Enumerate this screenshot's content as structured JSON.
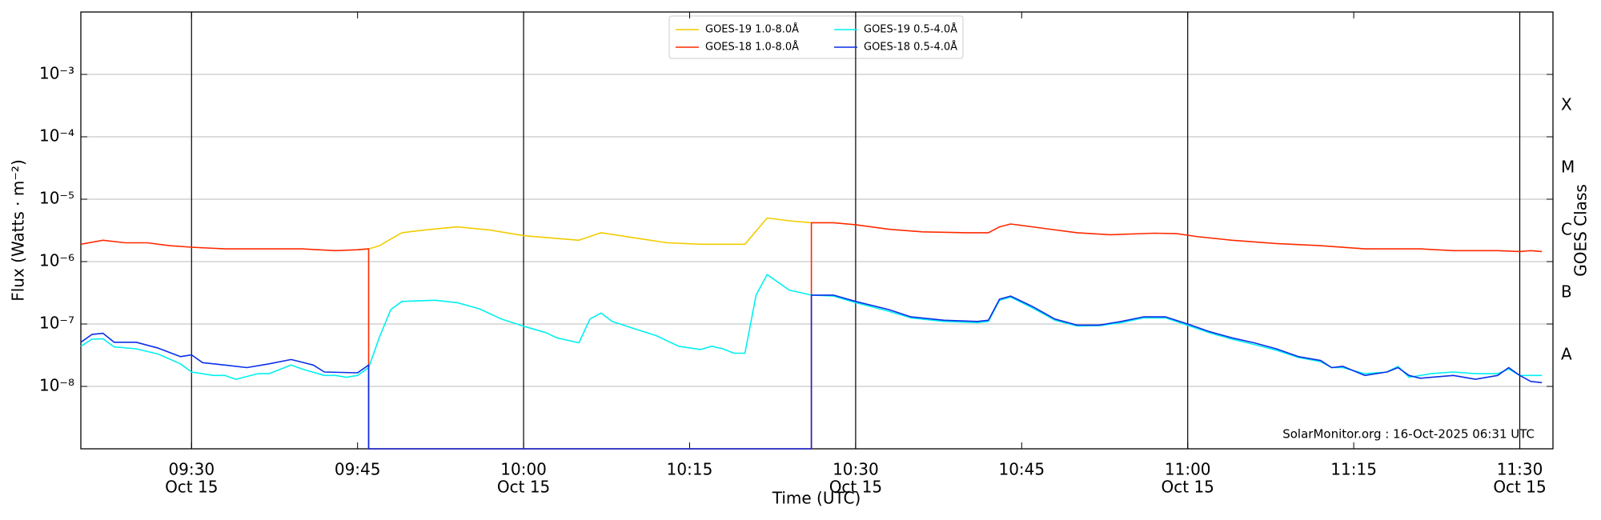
{
  "chart_data": {
    "type": "line",
    "x_label": "Time (UTC)",
    "y_label": "Flux (Watts · m⁻²)",
    "y2_label": "GOES Class",
    "annotation": "SolarMonitor.org : 16-Oct-2025 06:31 UTC",
    "log_y": true,
    "grid": true,
    "legend": "top",
    "xlim": [
      "09:20",
      "11:33"
    ],
    "ylim": [
      1e-09,
      0.01
    ],
    "xticks": [
      {
        "value": "09:30",
        "label": "09:30",
        "date": "Oct 15"
      },
      {
        "value": "09:45",
        "label": "09:45"
      },
      {
        "value": "10:00",
        "label": "10:00",
        "date": "Oct 15"
      },
      {
        "value": "10:15",
        "label": "10:15"
      },
      {
        "value": "10:30",
        "label": "10:30",
        "date": "Oct 15"
      },
      {
        "value": "10:45",
        "label": "10:45"
      },
      {
        "value": "11:00",
        "label": "11:00",
        "date": "Oct 15"
      },
      {
        "value": "11:15",
        "label": "11:15"
      },
      {
        "value": "11:30",
        "label": "11:30",
        "date": "Oct 15"
      }
    ],
    "vlines": [
      "09:30",
      "10:00",
      "10:30",
      "11:00",
      "11:30"
    ],
    "yticks": [
      {
        "value": 1e-08,
        "label": "10⁻⁸"
      },
      {
        "value": 1e-07,
        "label": "10⁻⁷"
      },
      {
        "value": 1e-06,
        "label": "10⁻⁶"
      },
      {
        "value": 1e-05,
        "label": "10⁻⁵"
      },
      {
        "value": 0.0001,
        "label": "10⁻⁴"
      },
      {
        "value": 0.001,
        "label": "10⁻³"
      }
    ],
    "class_ticks": [
      {
        "value": 3.16e-08,
        "label": "A"
      },
      {
        "value": 3.16e-07,
        "label": "B"
      },
      {
        "value": 3.16e-06,
        "label": "C"
      },
      {
        "value": 3.16e-05,
        "label": "M"
      },
      {
        "value": 0.000316,
        "label": "X"
      }
    ],
    "series": [
      {
        "name": "GOES-19 1.0-8.0Å",
        "color": "#f2cc00",
        "x": [
          "09:45",
          "09:46",
          "09:47",
          "09:48",
          "09:49",
          "09:51",
          "09:54",
          "09:57",
          "10:00",
          "10:05",
          "10:07",
          "10:10",
          "10:13",
          "10:16",
          "10:20",
          "10:22",
          "10:24",
          "10:26"
        ],
        "values": [
          1.55e-06,
          1.6e-06,
          1.8e-06,
          2.3e-06,
          2.9e-06,
          3.2e-06,
          3.6e-06,
          3.2e-06,
          2.6e-06,
          2.2e-06,
          2.9e-06,
          2.4e-06,
          2e-06,
          1.9e-06,
          1.9e-06,
          5e-06,
          4.5e-06,
          4.2e-06
        ]
      },
      {
        "name": "GOES-18 1.0-8.0Å",
        "color": "#ff2a00",
        "x": [
          "09:20",
          "09:22",
          "09:24",
          "09:26",
          "09:28",
          "09:30",
          "09:33",
          "09:37",
          "09:40",
          "09:43",
          "09:45",
          "09:46",
          "09:46",
          "10:26",
          "10:26",
          "10:28",
          "10:30",
          "10:33",
          "10:36",
          "10:40",
          "10:42",
          "10:43",
          "10:44",
          "10:47",
          "10:50",
          "10:53",
          "10:57",
          "10:59",
          "11:01",
          "11:04",
          "11:08",
          "11:12",
          "11:16",
          "11:21",
          "11:24",
          "11:28",
          "11:30",
          "11:31",
          "11:32"
        ],
        "values": [
          1.9e-06,
          2.2e-06,
          2e-06,
          2e-06,
          1.8e-06,
          1.7e-06,
          1.6e-06,
          1.6e-06,
          1.6e-06,
          1.5e-06,
          1.55e-06,
          1.6e-06,
          1e-09,
          1e-09,
          4.2e-06,
          4.2e-06,
          3.9e-06,
          3.3e-06,
          3e-06,
          2.9e-06,
          2.9e-06,
          3.6e-06,
          4e-06,
          3.4e-06,
          2.9e-06,
          2.7e-06,
          2.85e-06,
          2.8e-06,
          2.5e-06,
          2.2e-06,
          1.95e-06,
          1.8e-06,
          1.6e-06,
          1.6e-06,
          1.5e-06,
          1.5e-06,
          1.45e-06,
          1.5e-06,
          1.45e-06
        ]
      },
      {
        "name": "GOES-19 0.5-4.0Å",
        "color": "#00f0f0",
        "x": [
          "09:20",
          "09:21",
          "09:22",
          "09:23",
          "09:25",
          "09:27",
          "09:29",
          "09:30",
          "09:32",
          "09:33",
          "09:34",
          "09:36",
          "09:37",
          "09:39",
          "09:40",
          "09:42",
          "09:43",
          "09:44",
          "09:45",
          "09:46",
          "09:47",
          "09:48",
          "09:49",
          "09:52",
          "09:54",
          "09:56",
          "09:58",
          "10:00",
          "10:02",
          "10:03",
          "10:05",
          "10:06",
          "10:07",
          "10:08",
          "10:10",
          "10:12",
          "10:14",
          "10:16",
          "10:17",
          "10:18",
          "10:19",
          "10:20",
          "10:21",
          "10:22",
          "10:24",
          "10:26",
          "10:28",
          "10:30",
          "10:33",
          "10:35",
          "10:38",
          "10:41",
          "10:42",
          "10:43",
          "10:44",
          "10:46",
          "10:48",
          "10:50",
          "10:52",
          "10:54",
          "10:56",
          "10:58",
          "11:00",
          "11:02",
          "11:04",
          "11:06",
          "11:08",
          "11:10",
          "11:12",
          "11:13",
          "11:14",
          "11:16",
          "11:18",
          "11:19",
          "11:20",
          "11:22",
          "11:24",
          "11:26",
          "11:28",
          "11:29",
          "11:30",
          "11:32"
        ],
        "values": [
          4.4e-08,
          5.7e-08,
          5.8e-08,
          4.3e-08,
          4e-08,
          3.3e-08,
          2.3e-08,
          1.7e-08,
          1.5e-08,
          1.5e-08,
          1.3e-08,
          1.6e-08,
          1.6e-08,
          2.2e-08,
          1.9e-08,
          1.5e-08,
          1.5e-08,
          1.4e-08,
          1.5e-08,
          2e-08,
          6.3e-08,
          1.7e-07,
          2.3e-07,
          2.4e-07,
          2.2e-07,
          1.75e-07,
          1.2e-07,
          9.2e-08,
          7.3e-08,
          6e-08,
          5e-08,
          1.2e-07,
          1.5e-07,
          1.1e-07,
          8.4e-08,
          6.5e-08,
          4.4e-08,
          3.9e-08,
          4.4e-08,
          4e-08,
          3.4e-08,
          3.4e-08,
          2.9e-07,
          6.2e-07,
          3.5e-07,
          2.9e-07,
          2.8e-07,
          2.2e-07,
          1.6e-07,
          1.25e-07,
          1.1e-07,
          1.05e-07,
          1.1e-07,
          2.4e-07,
          2.7e-07,
          1.8e-07,
          1.15e-07,
          9.3e-08,
          9.4e-08,
          1.05e-07,
          1.25e-07,
          1.25e-07,
          9.5e-08,
          7.2e-08,
          5.7e-08,
          4.7e-08,
          3.8e-08,
          2.9e-08,
          2.5e-08,
          2e-08,
          2e-08,
          1.6e-08,
          1.7e-08,
          2.1e-08,
          1.4e-08,
          1.6e-08,
          1.7e-08,
          1.6e-08,
          1.6e-08,
          1.9e-08,
          1.5e-08,
          1.5e-08
        ]
      },
      {
        "name": "GOES-18 0.5-4.0Å",
        "color": "#0a2ee8",
        "x": [
          "09:20",
          "09:21",
          "09:22",
          "09:23",
          "09:25",
          "09:27",
          "09:29",
          "09:30",
          "09:31",
          "09:33",
          "09:35",
          "09:37",
          "09:39",
          "09:41",
          "09:42",
          "09:45",
          "09:46",
          "09:46",
          "10:26",
          "10:26",
          "10:28",
          "10:30",
          "10:33",
          "10:35",
          "10:38",
          "10:41",
          "10:42",
          "10:43",
          "10:44",
          "10:46",
          "10:48",
          "10:50",
          "10:52",
          "10:54",
          "10:56",
          "10:58",
          "11:00",
          "11:02",
          "11:04",
          "11:06",
          "11:08",
          "11:10",
          "11:12",
          "11:13",
          "11:14",
          "11:16",
          "11:18",
          "11:19",
          "11:20",
          "11:21",
          "11:24",
          "11:26",
          "11:28",
          "11:29",
          "11:30",
          "11:31",
          "11:32"
        ],
        "values": [
          5.1e-08,
          6.8e-08,
          7.1e-08,
          5.1e-08,
          5.1e-08,
          4.1e-08,
          3e-08,
          3.2e-08,
          2.4e-08,
          2.2e-08,
          2e-08,
          2.3e-08,
          2.7e-08,
          2.2e-08,
          1.7e-08,
          1.65e-08,
          2.2e-08,
          1e-09,
          1e-09,
          2.9e-07,
          2.9e-07,
          2.3e-07,
          1.7e-07,
          1.3e-07,
          1.15e-07,
          1.1e-07,
          1.15e-07,
          2.5e-07,
          2.8e-07,
          1.9e-07,
          1.2e-07,
          9.6e-08,
          9.6e-08,
          1.1e-07,
          1.3e-07,
          1.3e-07,
          1e-07,
          7.5e-08,
          6e-08,
          5e-08,
          4e-08,
          3e-08,
          2.6e-08,
          2e-08,
          2.1e-08,
          1.5e-08,
          1.7e-08,
          2e-08,
          1.5e-08,
          1.35e-08,
          1.5e-08,
          1.3e-08,
          1.5e-08,
          2e-08,
          1.5e-08,
          1.2e-08,
          1.15e-08
        ]
      }
    ]
  }
}
